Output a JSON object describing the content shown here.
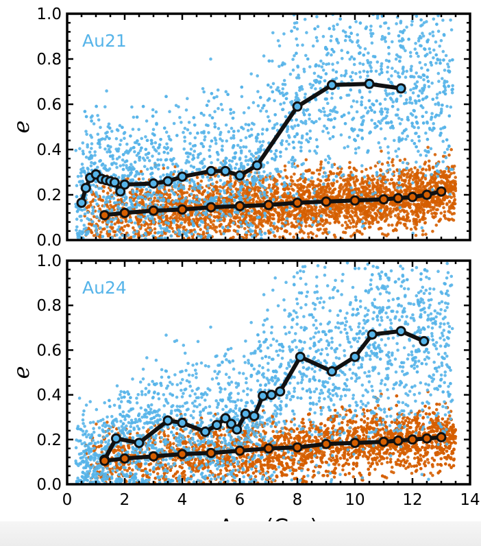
{
  "chart_data": [
    {
      "type": "scatter",
      "panel_label": "Au21",
      "xlabel": "",
      "ylabel": "e",
      "xlim": [
        0,
        14
      ],
      "ylim": [
        0,
        1.0
      ],
      "yticks": [
        "0.0",
        "0.2",
        "0.4",
        "0.6",
        "0.8",
        "1.0"
      ],
      "colors": {
        "blue": "#56b4e9",
        "orange": "#d55e00",
        "line": "#111111"
      },
      "series": [
        {
          "color": "blue",
          "x": [
            0.5,
            0.65,
            0.8,
            1.0,
            1.2,
            1.35,
            1.5,
            1.65,
            1.85,
            2.0,
            3.0,
            3.5,
            4.0,
            5.0,
            5.5,
            6.0,
            6.6,
            8.0,
            9.2,
            10.5,
            11.6
          ],
          "y": [
            0.165,
            0.23,
            0.275,
            0.29,
            0.27,
            0.265,
            0.26,
            0.255,
            0.215,
            0.245,
            0.25,
            0.26,
            0.28,
            0.305,
            0.305,
            0.285,
            0.33,
            0.59,
            0.685,
            0.69,
            0.67
          ]
        },
        {
          "color": "orange",
          "x": [
            1.3,
            2.0,
            3.0,
            4.0,
            5.0,
            6.0,
            7.0,
            8.0,
            9.0,
            10.0,
            11.0,
            11.5,
            12.0,
            12.5,
            13.0
          ],
          "y": [
            0.11,
            0.12,
            0.13,
            0.135,
            0.145,
            0.15,
            0.155,
            0.165,
            0.17,
            0.175,
            0.18,
            0.185,
            0.19,
            0.2,
            0.215
          ]
        }
      ]
    },
    {
      "type": "scatter",
      "panel_label": "Au24",
      "xlabel": "Age (Gyr)",
      "ylabel": "e",
      "xlim": [
        0,
        14
      ],
      "ylim": [
        0,
        1.0
      ],
      "xticks": [
        "0",
        "2",
        "4",
        "6",
        "8",
        "10",
        "12",
        "14"
      ],
      "yticks": [
        "0.0",
        "0.2",
        "0.4",
        "0.6",
        "0.8",
        "1.0"
      ],
      "colors": {
        "blue": "#56b4e9",
        "orange": "#d55e00",
        "line": "#111111"
      },
      "series": [
        {
          "color": "blue",
          "x": [
            1.3,
            1.7,
            2.5,
            3.5,
            4.0,
            4.8,
            5.2,
            5.5,
            5.7,
            5.9,
            6.2,
            6.5,
            6.8,
            7.1,
            7.4,
            8.1,
            9.2,
            10.0,
            10.6,
            11.6,
            12.4
          ],
          "y": [
            0.11,
            0.205,
            0.185,
            0.285,
            0.275,
            0.235,
            0.265,
            0.295,
            0.27,
            0.245,
            0.315,
            0.305,
            0.395,
            0.4,
            0.415,
            0.57,
            0.505,
            0.57,
            0.67,
            0.685,
            0.64
          ]
        },
        {
          "color": "orange",
          "x": [
            1.3,
            2.0,
            3.0,
            4.0,
            5.0,
            6.0,
            7.0,
            8.0,
            9.0,
            10.0,
            11.0,
            11.5,
            12.0,
            12.5,
            13.0
          ],
          "y": [
            0.105,
            0.115,
            0.125,
            0.135,
            0.14,
            0.15,
            0.16,
            0.165,
            0.18,
            0.185,
            0.19,
            0.195,
            0.2,
            0.205,
            0.21
          ]
        }
      ]
    }
  ]
}
